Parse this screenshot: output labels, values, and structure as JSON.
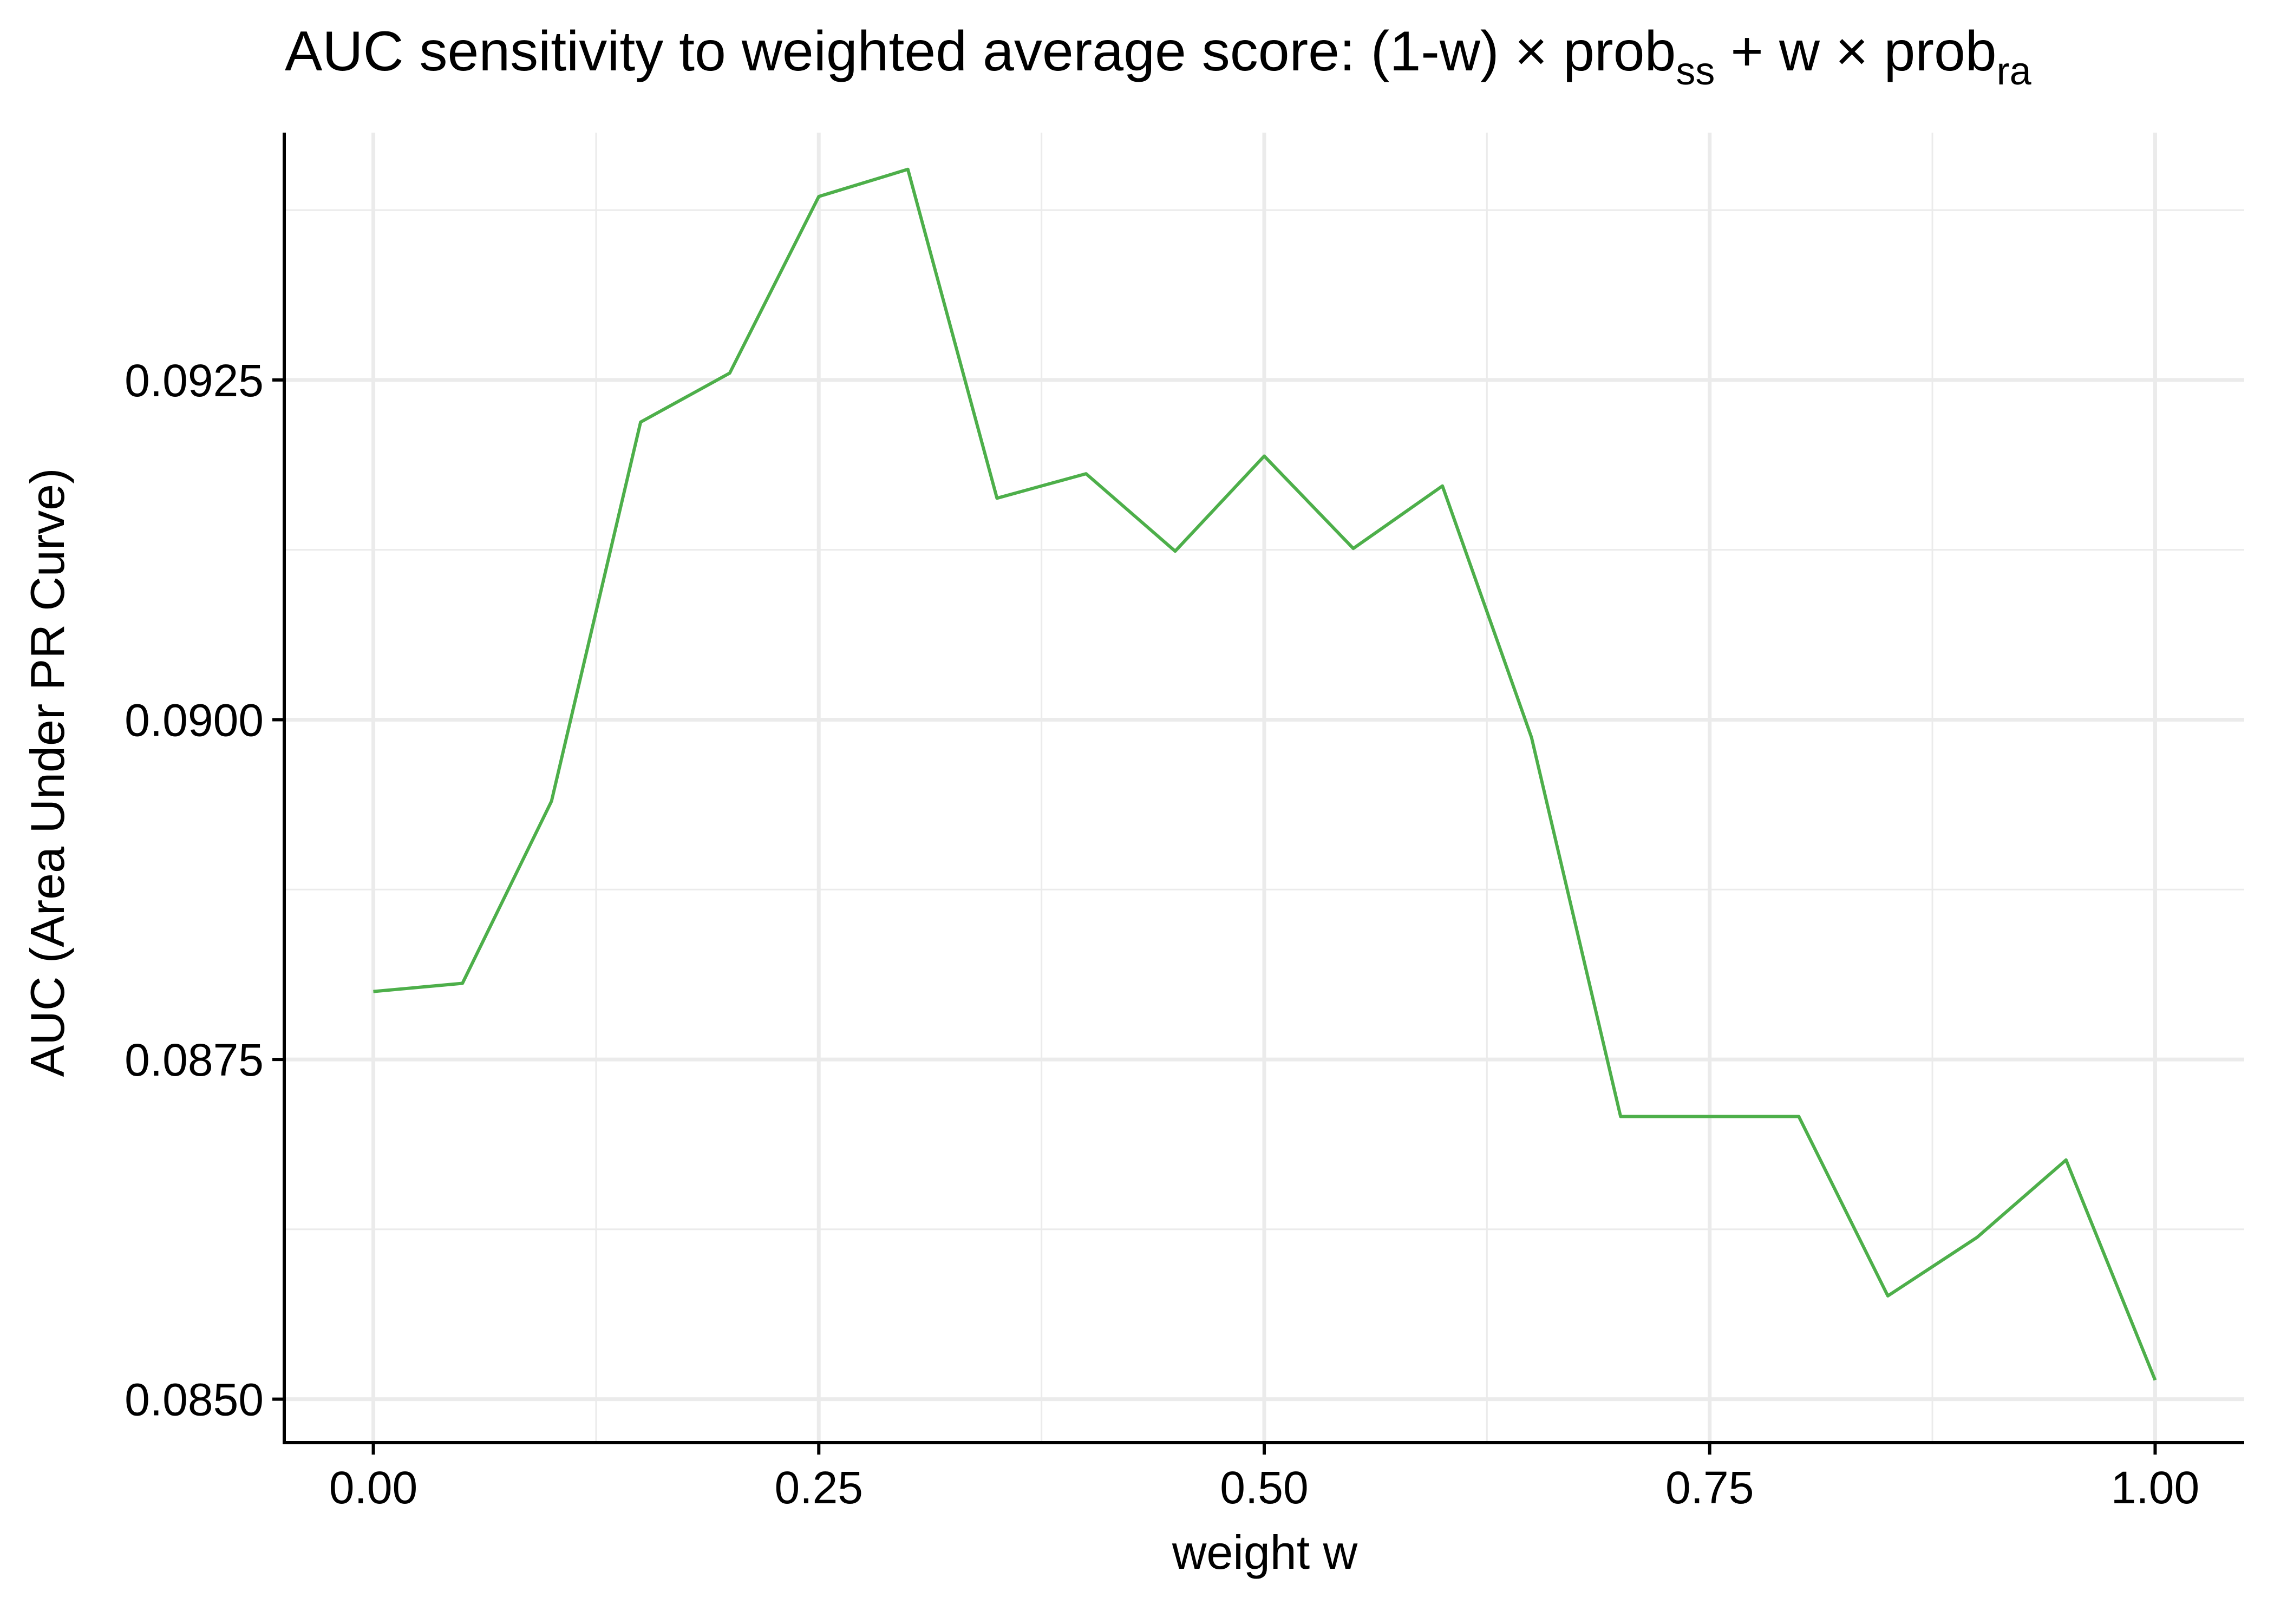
{
  "chart_data": {
    "type": "line",
    "title": {
      "prefix": "AUC sensitivity to weighted average score: (1-w) × prob",
      "sub1": "ss",
      "middle": " + w × prob",
      "sub2": "ra"
    },
    "xlabel": "weight w",
    "ylabel": "AUC (Area Under PR Curve)",
    "xlim": [
      -0.05,
      1.05
    ],
    "ylim": [
      0.08468,
      0.09432
    ],
    "x_ticks": [
      0.0,
      0.25,
      0.5,
      0.75,
      1.0
    ],
    "x_tick_labels": [
      "0.00",
      "0.25",
      "0.50",
      "0.75",
      "1.00"
    ],
    "y_ticks": [
      0.085,
      0.0875,
      0.09,
      0.0925
    ],
    "y_tick_labels": [
      "0.0850",
      "0.0875",
      "0.0900",
      "0.0925"
    ],
    "x_minor": [
      0.125,
      0.375,
      0.625,
      0.875
    ],
    "y_minor": [
      0.08625,
      0.08875,
      0.09125,
      0.09375
    ],
    "grid": true,
    "line_color": "#4daf4a",
    "series": [
      {
        "x": [
          0.0,
          0.05,
          0.1,
          0.15,
          0.2,
          0.25,
          0.3,
          0.35,
          0.4,
          0.45,
          0.5,
          0.55,
          0.6,
          0.65,
          0.7,
          0.75,
          0.8,
          0.85,
          0.9,
          0.95,
          1.0
        ],
        "values": [
          0.088,
          0.08806,
          0.0894,
          0.09219,
          0.09255,
          0.09385,
          0.09405,
          0.09163,
          0.09181,
          0.09124,
          0.09194,
          0.09126,
          0.09172,
          0.08987,
          0.08708,
          0.08708,
          0.08708,
          0.08576,
          0.08619,
          0.08676,
          0.08514
        ]
      }
    ]
  }
}
